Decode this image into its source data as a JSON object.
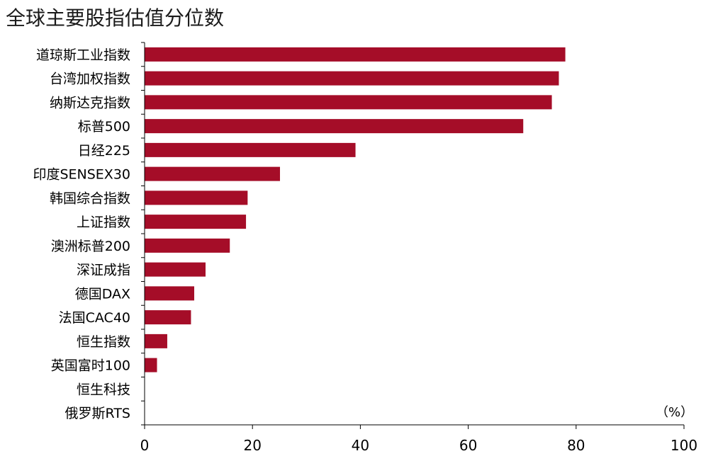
{
  "title": "全球主要股指估值分位数",
  "chart_data": {
    "type": "bar",
    "orientation": "horizontal",
    "title": "全球主要股指估值分位数",
    "unit_label": "（%）",
    "categories": [
      "道琼斯工业指数",
      "台湾加权指数",
      "纳斯达克指数",
      "标普500",
      "日经225",
      "印度SENSEX30",
      "韩国综合指数",
      "上证指数",
      "澳洲标普200",
      "深证成指",
      "德国DAX",
      "法国CAC40",
      "恒生指数",
      "英国富时100",
      "恒生科技",
      "俄罗斯RTS"
    ],
    "values": [
      78.0,
      76.8,
      75.5,
      70.2,
      39.1,
      25.1,
      19.1,
      18.8,
      15.8,
      11.3,
      9.2,
      8.6,
      4.2,
      2.3,
      0,
      0
    ],
    "xlim": [
      0,
      100
    ],
    "xticks": [
      "0",
      "20",
      "40",
      "60",
      "80",
      "100"
    ],
    "bar_color": "#A50D28",
    "grid": false
  }
}
